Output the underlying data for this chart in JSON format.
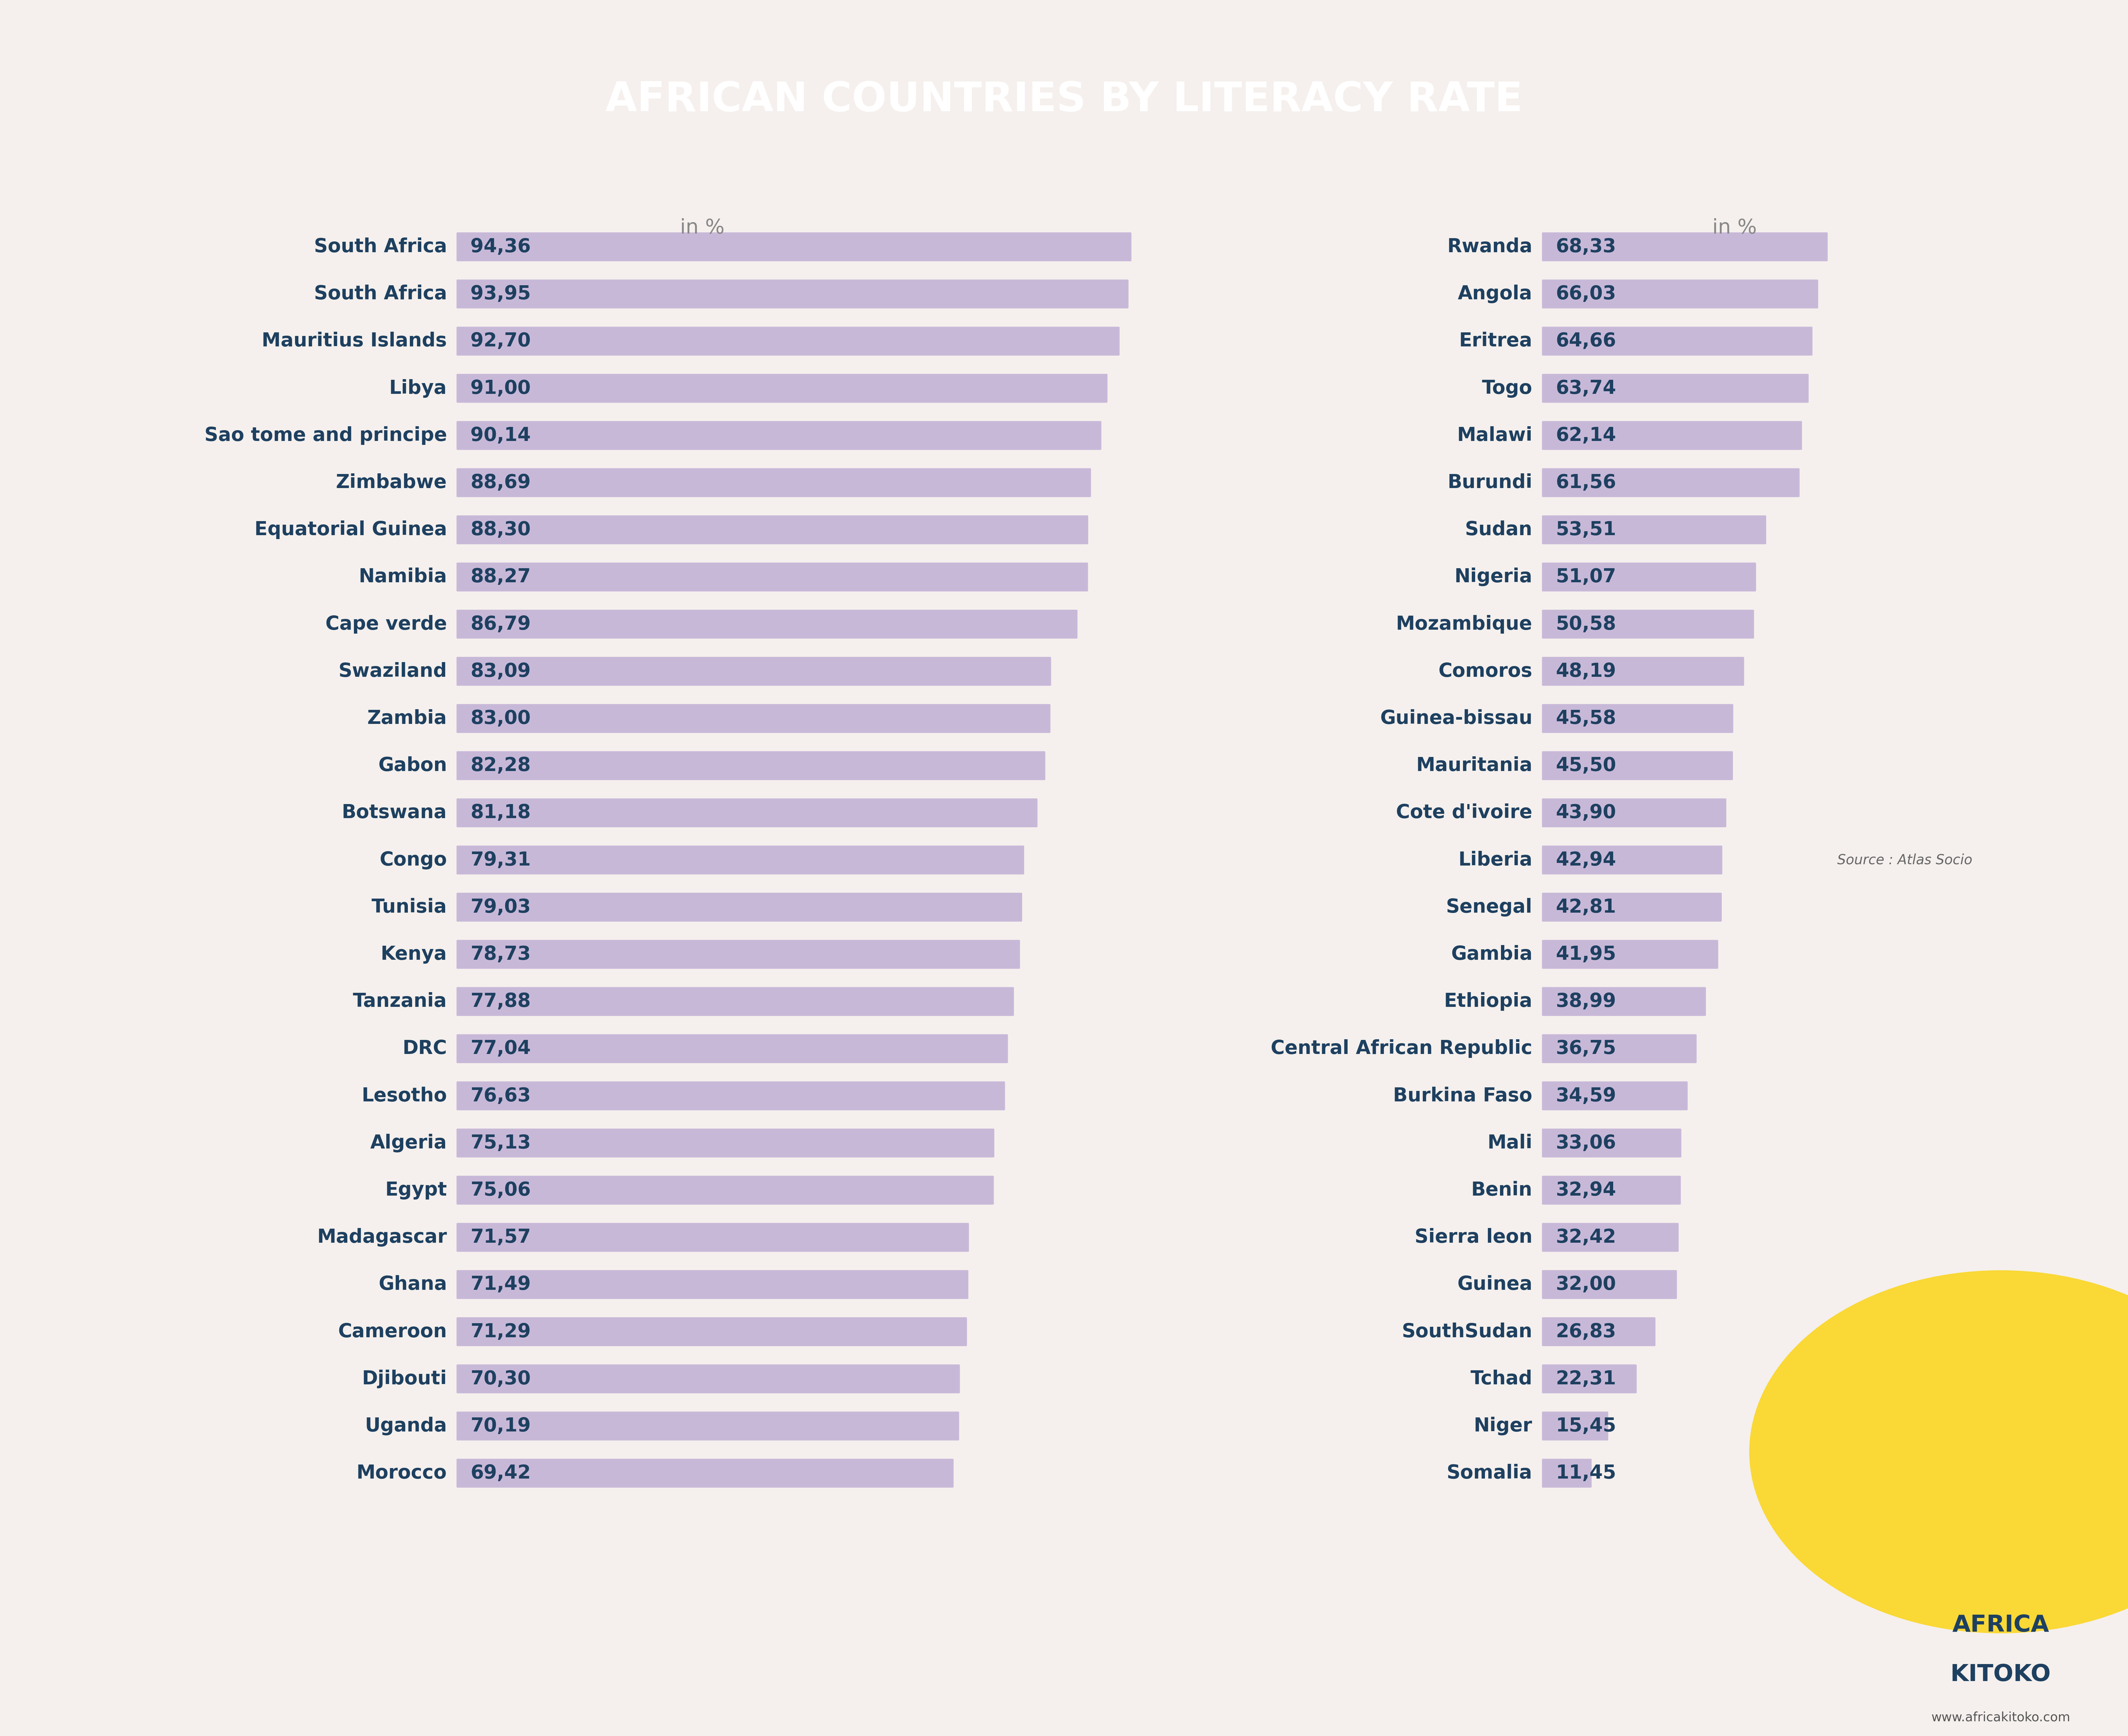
{
  "title": "AFRICAN COUNTRIES BY LITERACY RATE",
  "title_color": "#ffffff",
  "header_bg_color": "#6b3d8f",
  "bg_color": "#f5f0ed",
  "bar_color": "#c8b8d8",
  "text_color": "#1e4060",
  "value_color": "#1e4060",
  "in_pct_color": "#888888",
  "left_countries": [
    "South Africa",
    "South Africa",
    "Mauritius Islands",
    "Libya",
    "Sao tome and principe",
    "Zimbabwe",
    "Equatorial Guinea",
    "Namibia",
    "Cape verde",
    "Swaziland",
    "Zambia",
    "Gabon",
    "Botswana",
    "Congo",
    "Tunisia",
    "Kenya",
    "Tanzania",
    "DRC",
    "Lesotho",
    "Algeria",
    "Egypt",
    "Madagascar",
    "Ghana",
    "Cameroon",
    "Djibouti",
    "Uganda",
    "Morocco"
  ],
  "left_values": [
    94.36,
    93.95,
    92.7,
    91.0,
    90.14,
    88.69,
    88.3,
    88.27,
    86.79,
    83.09,
    83.0,
    82.28,
    81.18,
    79.31,
    79.03,
    78.73,
    77.88,
    77.04,
    76.63,
    75.13,
    75.06,
    71.57,
    71.49,
    71.29,
    70.3,
    70.19,
    69.42
  ],
  "right_countries": [
    "Rwanda",
    "Angola",
    "Eritrea",
    "Togo",
    "Malawi",
    "Burundi",
    "Sudan",
    "Nigeria",
    "Mozambique",
    "Comoros",
    "Guinea-bissau",
    "Mauritania",
    "Cote d'ivoire",
    "Liberia",
    "Senegal",
    "Gambia",
    "Ethiopia",
    "Central African Republic",
    "Burkina Faso",
    "Mali",
    "Benin",
    "Sierra leon",
    "Guinea",
    "SouthSudan",
    "Tchad",
    "Niger",
    "Somalia"
  ],
  "right_values": [
    68.33,
    66.03,
    64.66,
    63.74,
    62.14,
    61.56,
    53.51,
    51.07,
    50.58,
    48.19,
    45.58,
    45.5,
    43.9,
    42.94,
    42.81,
    41.95,
    38.99,
    36.75,
    34.59,
    33.06,
    32.94,
    32.42,
    32.0,
    26.83,
    22.31,
    15.45,
    11.45
  ],
  "source_text": "Source : Atlas Socio",
  "branding_line1": "AFRICA",
  "branding_line2": "KITOKO",
  "website_text": "www.africakitoko.com",
  "figsize": [
    65.07,
    53.07
  ],
  "dpi": 100
}
